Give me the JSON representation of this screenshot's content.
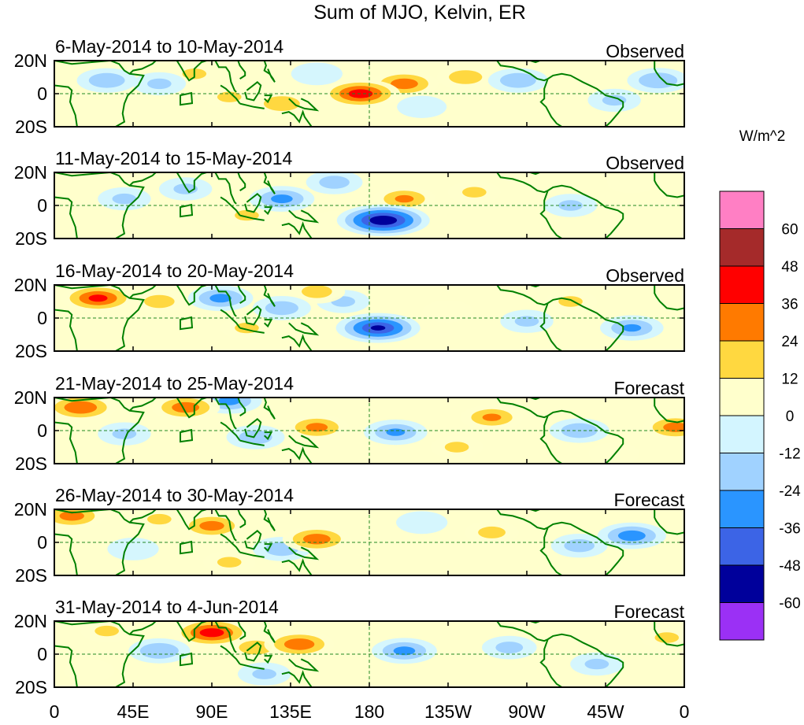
{
  "chart_data": {
    "type": "heatmap",
    "title": "Sum of MJO, Kelvin, ER",
    "colorbar": {
      "units": "W/m^2",
      "levels": [
        60,
        48,
        36,
        24,
        12,
        0,
        -12,
        -24,
        -36,
        -48,
        -60
      ],
      "colors": [
        "#ff7fc4",
        "#a52a2a",
        "#ff0000",
        "#ff7a00",
        "#ffd840",
        "#ffffcc",
        "#d3f5ff",
        "#a0d2ff",
        "#2a95ff",
        "#3c64e6",
        "#00009b",
        "#9b30f5"
      ]
    },
    "x_ticks": [
      "0",
      "45E",
      "90E",
      "135E",
      "180",
      "135W",
      "90W",
      "45W",
      "0"
    ],
    "y_ticks": [
      "20N",
      "0",
      "20S"
    ],
    "panels": [
      {
        "period": "6-May-2014 to 10-May-2014",
        "status": "Observed",
        "blobs": [
          {
            "lon": 175,
            "lat": 0,
            "value": 44
          },
          {
            "lon": 200,
            "lat": 6,
            "value": 32
          },
          {
            "lon": 235,
            "lat": 10,
            "value": 20
          },
          {
            "lon": 130,
            "lat": -6,
            "value": 22
          },
          {
            "lon": 100,
            "lat": -2,
            "value": 14
          },
          {
            "lon": 80,
            "lat": 12,
            "value": 14
          },
          {
            "lon": 30,
            "lat": 8,
            "value": -22
          },
          {
            "lon": 60,
            "lat": 6,
            "value": -14
          },
          {
            "lon": 150,
            "lat": 12,
            "value": -12
          },
          {
            "lon": 265,
            "lat": 8,
            "value": -22
          },
          {
            "lon": 345,
            "lat": 8,
            "value": -24
          },
          {
            "lon": 320,
            "lat": -4,
            "value": -14
          },
          {
            "lon": 210,
            "lat": -8,
            "value": -10
          }
        ]
      },
      {
        "period": "11-May-2014 to 15-May-2014",
        "status": "Observed",
        "blobs": [
          {
            "lon": 188,
            "lat": -9,
            "value": -60
          },
          {
            "lon": 130,
            "lat": 4,
            "value": -28
          },
          {
            "lon": 160,
            "lat": 14,
            "value": -18
          },
          {
            "lon": 75,
            "lat": 10,
            "value": -14
          },
          {
            "lon": 40,
            "lat": 4,
            "value": -14
          },
          {
            "lon": 295,
            "lat": 0,
            "value": -14
          },
          {
            "lon": 200,
            "lat": 4,
            "value": 26
          },
          {
            "lon": 240,
            "lat": 8,
            "value": 14
          },
          {
            "lon": 110,
            "lat": -6,
            "value": 14
          },
          {
            "lon": 160,
            "lat": -10,
            "value": 12
          },
          {
            "lon": 330,
            "lat": 14,
            "value": 10
          }
        ]
      },
      {
        "period": "16-May-2014 to 20-May-2014",
        "status": "Observed",
        "blobs": [
          {
            "lon": 25,
            "lat": 12,
            "value": 40
          },
          {
            "lon": 185,
            "lat": -6,
            "value": -50
          },
          {
            "lon": 95,
            "lat": 12,
            "value": -28
          },
          {
            "lon": 130,
            "lat": 6,
            "value": -20
          },
          {
            "lon": 165,
            "lat": 10,
            "value": -14
          },
          {
            "lon": 330,
            "lat": -6,
            "value": -26
          },
          {
            "lon": 270,
            "lat": -2,
            "value": -14
          },
          {
            "lon": 60,
            "lat": 10,
            "value": 18
          },
          {
            "lon": 150,
            "lat": 16,
            "value": 18
          },
          {
            "lon": 110,
            "lat": -6,
            "value": 14
          },
          {
            "lon": 225,
            "lat": 4,
            "value": 12
          },
          {
            "lon": 295,
            "lat": 10,
            "value": 14
          }
        ]
      },
      {
        "period": "21-May-2014 to 25-May-2014",
        "status": "Forecast",
        "blobs": [
          {
            "lon": 15,
            "lat": 14,
            "value": 36
          },
          {
            "lon": 75,
            "lat": 14,
            "value": 32
          },
          {
            "lon": 150,
            "lat": 2,
            "value": 28
          },
          {
            "lon": 250,
            "lat": 8,
            "value": 26
          },
          {
            "lon": 355,
            "lat": 2,
            "value": 30
          },
          {
            "lon": 100,
            "lat": 18,
            "value": -28
          },
          {
            "lon": 115,
            "lat": -4,
            "value": -20
          },
          {
            "lon": 195,
            "lat": -1,
            "value": -26
          },
          {
            "lon": 300,
            "lat": 0,
            "value": -22
          },
          {
            "lon": 40,
            "lat": -2,
            "value": -14
          },
          {
            "lon": 230,
            "lat": -10,
            "value": 14
          },
          {
            "lon": 320,
            "lat": -14,
            "value": 12
          }
        ]
      },
      {
        "period": "26-May-2014 to 30-May-2014",
        "status": "Forecast",
        "blobs": [
          {
            "lon": 10,
            "lat": 16,
            "value": 30
          },
          {
            "lon": 90,
            "lat": 10,
            "value": 30
          },
          {
            "lon": 150,
            "lat": 2,
            "value": 32
          },
          {
            "lon": 250,
            "lat": 6,
            "value": 16
          },
          {
            "lon": 130,
            "lat": -4,
            "value": -20
          },
          {
            "lon": 330,
            "lat": 4,
            "value": -32
          },
          {
            "lon": 300,
            "lat": -2,
            "value": -18
          },
          {
            "lon": 210,
            "lat": 12,
            "value": -12
          },
          {
            "lon": 45,
            "lat": -4,
            "value": -12
          },
          {
            "lon": 60,
            "lat": 14,
            "value": 14
          },
          {
            "lon": 100,
            "lat": -12,
            "value": 14
          }
        ]
      },
      {
        "period": "31-May-2014 to 4-Jun-2014",
        "status": "Forecast",
        "blobs": [
          {
            "lon": 90,
            "lat": 13,
            "value": 44
          },
          {
            "lon": 140,
            "lat": 6,
            "value": 34
          },
          {
            "lon": 115,
            "lat": 4,
            "value": 20
          },
          {
            "lon": 30,
            "lat": 14,
            "value": 14
          },
          {
            "lon": 60,
            "lat": 2,
            "value": -24
          },
          {
            "lon": 200,
            "lat": 2,
            "value": -28
          },
          {
            "lon": 260,
            "lat": 4,
            "value": -16
          },
          {
            "lon": 310,
            "lat": -6,
            "value": -14
          },
          {
            "lon": 120,
            "lat": -12,
            "value": -14
          },
          {
            "lon": 350,
            "lat": 10,
            "value": 14
          },
          {
            "lon": 20,
            "lat": -10,
            "value": 12
          }
        ]
      }
    ]
  }
}
